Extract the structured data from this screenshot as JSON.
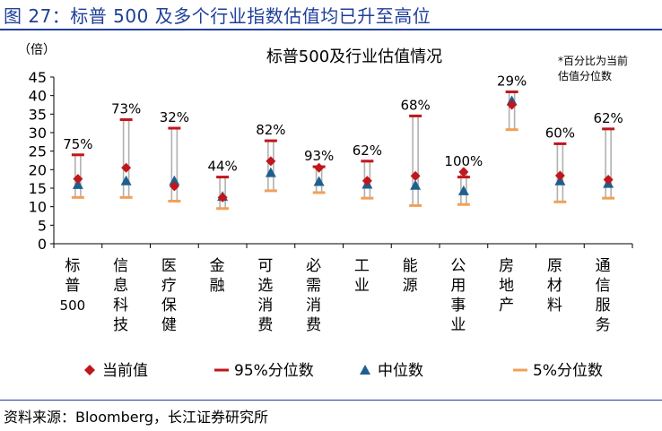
{
  "figure_title": "图 27：标普 500  及多个行业指数估值均已升至高位",
  "source": "资料来源：Bloomberg，长江证券研究所",
  "chart_data": {
    "type": "range-dot",
    "title": "标普500及行业估值情况",
    "ylabel": "（倍）",
    "note": "*百分比为当前估值分位数",
    "ylim": [
      0,
      45
    ],
    "yticks": [
      0,
      5,
      10,
      15,
      20,
      25,
      30,
      35,
      40,
      45
    ],
    "categories": [
      "标普500",
      "信息科技",
      "医疗保健",
      "金融",
      "可选消费",
      "必需消费",
      "工业",
      "能源",
      "公用事业",
      "房地产",
      "原材料",
      "通信服务"
    ],
    "current": [
      17.5,
      20.5,
      15.5,
      12.5,
      22.3,
      20.5,
      17.0,
      18.3,
      19.4,
      37.5,
      18.4,
      17.3
    ],
    "p95": [
      24.0,
      33.5,
      31.2,
      18.0,
      27.8,
      20.8,
      22.3,
      34.5,
      18.0,
      41.0,
      27.0,
      31.0
    ],
    "median": [
      16.0,
      17.0,
      17.0,
      12.8,
      19.2,
      16.8,
      16.1,
      15.8,
      14.3,
      38.6,
      17.0,
      16.3
    ],
    "p5": [
      12.5,
      12.5,
      11.5,
      9.5,
      14.3,
      13.8,
      12.3,
      10.3,
      10.6,
      30.8,
      11.3,
      12.3
    ],
    "percentile_labels": [
      "75%",
      "73%",
      "32%",
      "44%",
      "82%",
      "93%",
      "62%",
      "68%",
      "100%",
      "29%",
      "60%",
      "62%"
    ],
    "legend": [
      {
        "key": "current",
        "label": "当前值",
        "color": "#c0161c"
      },
      {
        "key": "p95",
        "label": "95%分位数",
        "color": "#c0161c"
      },
      {
        "key": "median",
        "label": "中位数",
        "color": "#1f5f8f"
      },
      {
        "key": "p5",
        "label": "5%分位数",
        "color": "#f2a057"
      }
    ],
    "colors": {
      "current": "#c0161c",
      "p95": "#c0161c",
      "median": "#1f5f8f",
      "p5": "#f2a057",
      "range": "#b0b0b0"
    },
    "grid": false,
    "legend_position": "bottom"
  }
}
